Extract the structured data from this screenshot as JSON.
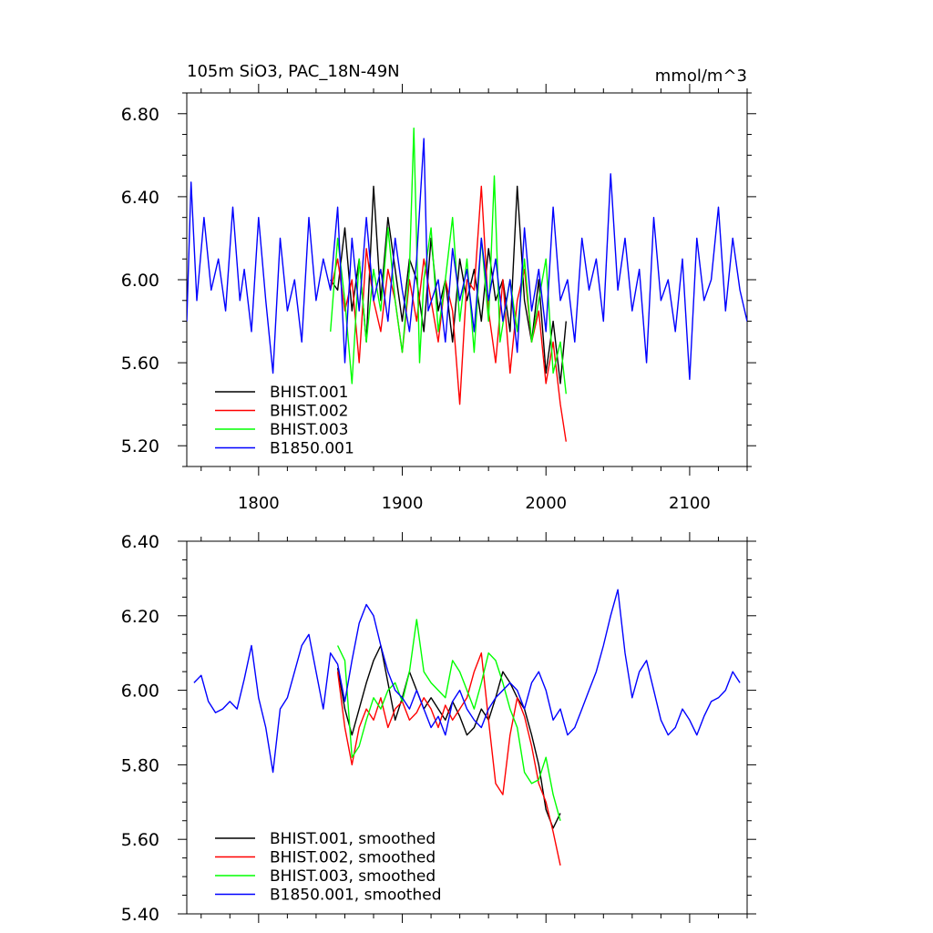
{
  "chart_data": [
    {
      "type": "line",
      "title": "105m SiO3, PAC_18N-49N",
      "units": "mmol/m^3",
      "xlim": [
        1750,
        2140
      ],
      "ylim": [
        5.1,
        6.9
      ],
      "xticks": [
        1800,
        1900,
        2000,
        2100
      ],
      "xtick_labels": [
        "1800",
        "1900",
        "2000",
        "2100"
      ],
      "yticks": [
        5.2,
        5.6,
        6.0,
        6.4,
        6.8
      ],
      "ytick_labels": [
        "5.20",
        "5.60",
        "6.00",
        "6.40",
        "6.80"
      ],
      "legend_position": "bottom-left",
      "series": [
        {
          "name": "BHIST.001",
          "color": "#000000",
          "x": [
            1850,
            1855,
            1860,
            1865,
            1870,
            1875,
            1880,
            1885,
            1890,
            1895,
            1900,
            1905,
            1910,
            1915,
            1920,
            1925,
            1930,
            1935,
            1940,
            1945,
            1950,
            1955,
            1960,
            1965,
            1970,
            1975,
            1980,
            1985,
            1990,
            1995,
            2000,
            2005,
            2010,
            2014
          ],
          "y": [
            6.0,
            5.95,
            6.25,
            5.85,
            6.1,
            5.7,
            6.45,
            5.9,
            6.3,
            6.05,
            5.8,
            6.1,
            6.0,
            5.75,
            6.2,
            5.85,
            6.0,
            5.7,
            6.1,
            5.9,
            6.05,
            5.8,
            6.15,
            5.9,
            6.0,
            5.75,
            6.45,
            5.9,
            5.7,
            6.0,
            5.55,
            5.8,
            5.5,
            5.8
          ]
        },
        {
          "name": "BHIST.002",
          "color": "#ff0000",
          "x": [
            1850,
            1855,
            1860,
            1865,
            1870,
            1875,
            1880,
            1885,
            1890,
            1895,
            1900,
            1905,
            1910,
            1915,
            1920,
            1925,
            1930,
            1935,
            1940,
            1945,
            1950,
            1955,
            1960,
            1965,
            1970,
            1975,
            1980,
            1985,
            1990,
            1995,
            2000,
            2005,
            2010,
            2014
          ],
          "y": [
            5.95,
            6.1,
            5.85,
            6.0,
            5.6,
            6.15,
            5.9,
            5.75,
            6.05,
            5.9,
            5.65,
            6.0,
            5.8,
            6.1,
            5.9,
            5.7,
            6.0,
            5.85,
            5.4,
            6.0,
            5.95,
            6.45,
            5.85,
            5.6,
            6.0,
            5.55,
            5.9,
            6.05,
            5.7,
            5.85,
            5.5,
            5.7,
            5.4,
            5.22
          ]
        },
        {
          "name": "BHIST.003",
          "color": "#00ff00",
          "x": [
            1850,
            1855,
            1860,
            1865,
            1870,
            1875,
            1880,
            1885,
            1890,
            1895,
            1900,
            1905,
            1908,
            1912,
            1915,
            1920,
            1925,
            1930,
            1935,
            1940,
            1945,
            1950,
            1955,
            1960,
            1964,
            1968,
            1975,
            1980,
            1985,
            1990,
            1995,
            2000,
            2005,
            2010,
            2014
          ],
          "y": [
            5.75,
            6.2,
            5.9,
            5.5,
            6.1,
            5.7,
            6.05,
            5.85,
            6.25,
            5.9,
            5.65,
            6.05,
            6.73,
            5.6,
            6.0,
            6.25,
            5.75,
            6.0,
            6.3,
            5.8,
            6.1,
            5.65,
            6.2,
            5.8,
            6.5,
            5.7,
            6.0,
            5.75,
            6.1,
            5.7,
            5.9,
            6.1,
            5.55,
            5.7,
            5.45
          ]
        },
        {
          "name": "B1850.001",
          "color": "#0000ff",
          "x": [
            1750,
            1753,
            1757,
            1762,
            1767,
            1772,
            1777,
            1782,
            1787,
            1790,
            1795,
            1800,
            1805,
            1810,
            1815,
            1820,
            1825,
            1830,
            1835,
            1840,
            1845,
            1850,
            1855,
            1860,
            1865,
            1870,
            1875,
            1880,
            1885,
            1890,
            1895,
            1900,
            1905,
            1910,
            1915,
            1918,
            1925,
            1930,
            1935,
            1940,
            1945,
            1950,
            1955,
            1960,
            1965,
            1970,
            1975,
            1980,
            1985,
            1990,
            1995,
            2000,
            2005,
            2010,
            2015,
            2020,
            2025,
            2030,
            2035,
            2040,
            2045,
            2050,
            2055,
            2060,
            2065,
            2070,
            2075,
            2080,
            2085,
            2090,
            2095,
            2100,
            2105,
            2110,
            2115,
            2120,
            2125,
            2130,
            2135,
            2140
          ],
          "y": [
            5.8,
            6.47,
            5.9,
            6.3,
            5.95,
            6.1,
            5.85,
            6.35,
            5.9,
            6.05,
            5.75,
            6.3,
            5.9,
            5.55,
            6.2,
            5.85,
            6.0,
            5.7,
            6.3,
            5.9,
            6.1,
            5.95,
            6.35,
            5.6,
            6.2,
            5.85,
            6.3,
            5.9,
            6.05,
            5.8,
            6.2,
            5.95,
            5.75,
            6.1,
            6.68,
            5.85,
            6.0,
            5.7,
            6.15,
            5.9,
            6.05,
            5.75,
            6.2,
            5.9,
            6.1,
            5.8,
            6.0,
            5.65,
            6.25,
            5.85,
            6.05,
            5.75,
            6.35,
            5.9,
            6.0,
            5.7,
            6.2,
            5.95,
            6.1,
            5.8,
            6.51,
            5.95,
            6.2,
            5.85,
            6.05,
            5.6,
            6.3,
            5.9,
            6.0,
            5.75,
            6.1,
            5.52,
            6.2,
            5.9,
            6.0,
            6.35,
            5.85,
            6.2,
            5.95,
            5.8
          ]
        }
      ]
    },
    {
      "type": "line",
      "xlim": [
        1750,
        2140
      ],
      "ylim": [
        5.4,
        6.4
      ],
      "xticks": [
        1800,
        1900,
        2000,
        2100
      ],
      "yticks": [
        5.4,
        5.6,
        5.8,
        6.0,
        6.2,
        6.4
      ],
      "ytick_labels": [
        "5.40",
        "5.60",
        "5.80",
        "6.00",
        "6.20",
        "6.40"
      ],
      "legend_position": "bottom-left",
      "series": [
        {
          "name": "BHIST.001, smoothed",
          "color": "#000000",
          "x": [
            1855,
            1860,
            1865,
            1870,
            1875,
            1880,
            1885,
            1890,
            1895,
            1900,
            1905,
            1910,
            1915,
            1920,
            1925,
            1930,
            1935,
            1940,
            1945,
            1950,
            1955,
            1960,
            1965,
            1970,
            1975,
            1980,
            1985,
            1990,
            1995,
            2000,
            2005,
            2010
          ],
          "y": [
            6.06,
            5.95,
            5.88,
            5.95,
            6.02,
            6.08,
            6.12,
            6.02,
            5.92,
            5.98,
            6.05,
            6.0,
            5.95,
            5.98,
            5.95,
            5.92,
            5.97,
            5.93,
            5.88,
            5.9,
            5.95,
            5.92,
            5.98,
            6.05,
            6.02,
            5.98,
            5.95,
            5.88,
            5.8,
            5.68,
            5.63,
            5.67
          ]
        },
        {
          "name": "BHIST.002, smoothed",
          "color": "#ff0000",
          "x": [
            1855,
            1860,
            1865,
            1870,
            1875,
            1880,
            1885,
            1890,
            1895,
            1900,
            1905,
            1910,
            1915,
            1920,
            1925,
            1930,
            1935,
            1940,
            1945,
            1950,
            1955,
            1960,
            1965,
            1970,
            1975,
            1980,
            1985,
            1990,
            1995,
            2000,
            2005,
            2010
          ],
          "y": [
            6.05,
            5.9,
            5.8,
            5.9,
            5.95,
            5.92,
            5.98,
            5.9,
            5.95,
            5.97,
            5.92,
            5.94,
            5.98,
            5.95,
            5.9,
            5.96,
            5.92,
            5.95,
            5.98,
            6.05,
            6.1,
            5.92,
            5.75,
            5.72,
            5.88,
            5.98,
            5.93,
            5.85,
            5.75,
            5.7,
            5.62,
            5.53
          ]
        },
        {
          "name": "BHIST.003, smoothed",
          "color": "#00ff00",
          "x": [
            1855,
            1860,
            1865,
            1870,
            1875,
            1880,
            1885,
            1890,
            1895,
            1900,
            1905,
            1910,
            1915,
            1920,
            1925,
            1930,
            1935,
            1940,
            1945,
            1950,
            1955,
            1960,
            1965,
            1970,
            1975,
            1980,
            1985,
            1990,
            1995,
            2000,
            2005,
            2010
          ],
          "y": [
            6.12,
            6.08,
            5.82,
            5.85,
            5.92,
            5.98,
            5.95,
            6.0,
            6.02,
            5.97,
            6.05,
            6.19,
            6.05,
            6.02,
            6.0,
            5.98,
            6.08,
            6.05,
            6.0,
            5.95,
            6.02,
            6.1,
            6.08,
            6.02,
            5.95,
            5.9,
            5.78,
            5.75,
            5.76,
            5.82,
            5.72,
            5.65
          ]
        },
        {
          "name": "B1850.001, smoothed",
          "color": "#0000ff",
          "x": [
            1755,
            1760,
            1765,
            1770,
            1775,
            1780,
            1785,
            1790,
            1795,
            1800,
            1805,
            1810,
            1815,
            1820,
            1825,
            1830,
            1835,
            1840,
            1845,
            1850,
            1855,
            1860,
            1865,
            1870,
            1875,
            1880,
            1885,
            1890,
            1895,
            1900,
            1905,
            1910,
            1915,
            1920,
            1925,
            1930,
            1935,
            1940,
            1945,
            1950,
            1955,
            1960,
            1965,
            1970,
            1975,
            1980,
            1985,
            1990,
            1995,
            2000,
            2005,
            2010,
            2015,
            2020,
            2025,
            2030,
            2035,
            2040,
            2045,
            2050,
            2055,
            2060,
            2065,
            2070,
            2075,
            2080,
            2085,
            2090,
            2095,
            2100,
            2105,
            2110,
            2115,
            2120,
            2125,
            2130,
            2135
          ],
          "y": [
            6.02,
            6.04,
            5.97,
            5.94,
            5.95,
            5.97,
            5.95,
            6.03,
            6.12,
            5.98,
            5.9,
            5.78,
            5.95,
            5.98,
            6.05,
            6.12,
            6.15,
            6.05,
            5.95,
            6.1,
            6.07,
            5.97,
            6.08,
            6.18,
            6.23,
            6.2,
            6.12,
            6.05,
            6.0,
            5.98,
            5.95,
            6.0,
            5.95,
            5.9,
            5.93,
            5.88,
            5.97,
            6.0,
            5.95,
            5.92,
            5.9,
            5.95,
            5.98,
            6.0,
            6.02,
            6.0,
            5.95,
            6.02,
            6.05,
            6.0,
            5.92,
            5.95,
            5.88,
            5.9,
            5.95,
            6.0,
            6.05,
            6.12,
            6.2,
            6.27,
            6.1,
            5.98,
            6.05,
            6.08,
            6.0,
            5.92,
            5.88,
            5.9,
            5.95,
            5.92,
            5.88,
            5.93,
            5.97,
            5.98,
            6.0,
            6.05,
            6.02
          ]
        }
      ]
    }
  ]
}
